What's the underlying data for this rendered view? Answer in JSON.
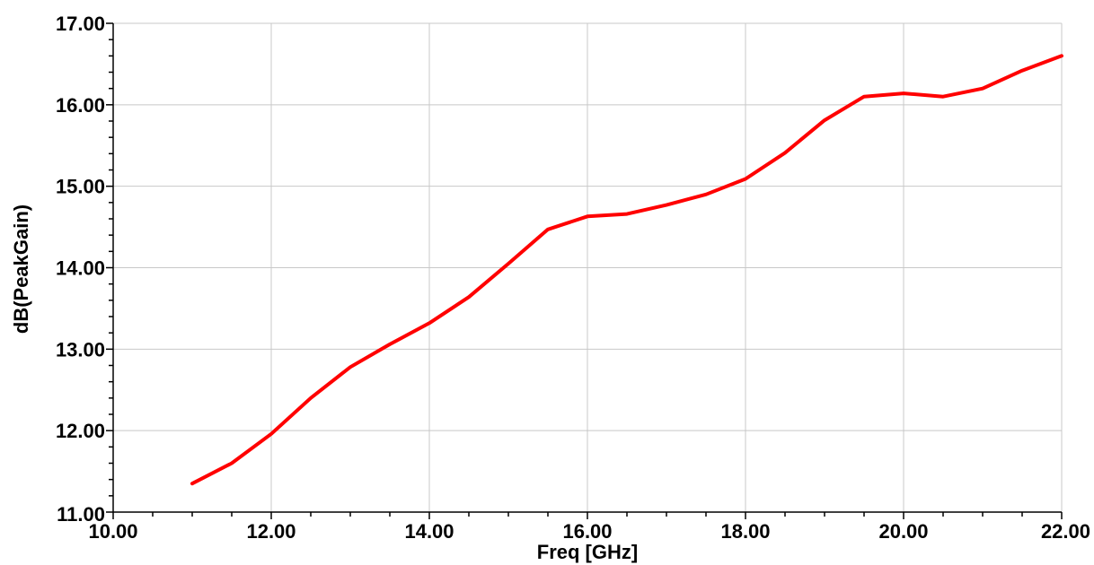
{
  "chart_data": {
    "type": "line",
    "xlabel": "Freq [GHz]",
    "ylabel": "dB(PeakGain)",
    "xlim": [
      10,
      22
    ],
    "ylim": [
      11,
      17
    ],
    "x_ticks": [
      10,
      12,
      14,
      16,
      18,
      20,
      22
    ],
    "y_ticks": [
      11,
      12,
      13,
      14,
      15,
      16,
      17
    ],
    "x_tick_labels": [
      "10.00",
      "12.00",
      "14.00",
      "16.00",
      "18.00",
      "20.00",
      "22.00"
    ],
    "y_tick_labels": [
      "11.00",
      "12.00",
      "13.00",
      "14.00",
      "15.00",
      "16.00",
      "17.00"
    ],
    "grid": true,
    "series": [
      {
        "color": "#ff0000",
        "x": [
          11,
          11.5,
          12,
          12.5,
          13,
          13.5,
          14,
          14.5,
          15,
          15.5,
          16,
          16.5,
          17,
          17.5,
          18,
          18.5,
          19,
          19.5,
          20,
          20.5,
          21,
          21.5,
          22
        ],
        "y": [
          11.35,
          11.6,
          11.96,
          12.4,
          12.78,
          13.06,
          13.32,
          13.64,
          14.05,
          14.47,
          14.63,
          14.66,
          14.77,
          14.9,
          15.09,
          15.41,
          15.81,
          16.1,
          16.14,
          16.1,
          16.2,
          16.42,
          16.6
        ]
      }
    ]
  }
}
